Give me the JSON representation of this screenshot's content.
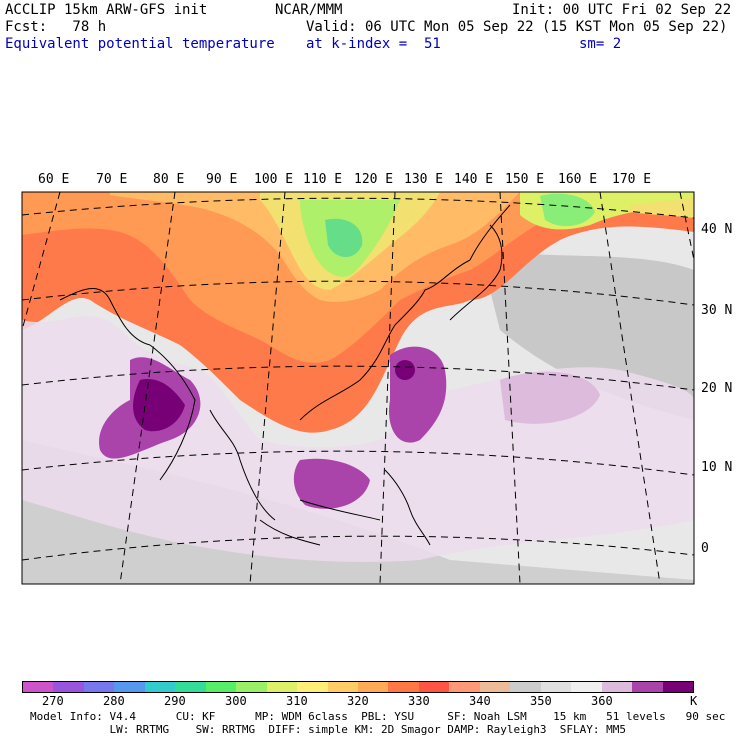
{
  "header": {
    "line1_left": "ACCLIP 15km ARW-GFS init",
    "line1_mid": "NCAR/MMM",
    "line1_right": "Init: 00 UTC Fri 02 Sep 22",
    "line2_left": "Fcst:   78 h",
    "line2_right": "Valid: 06 UTC Mon 05 Sep 22 (15 KST Mon 05 Sep 22)",
    "line3_left": "Equivalent potential temperature",
    "line3_mid": "at k-index =  51",
    "line3_right": "sm= 2"
  },
  "map": {
    "lon_labels": [
      "60 E",
      "70 E",
      "80 E",
      "90 E",
      "100 E",
      "110 E",
      "120 E",
      "130 E",
      "140 E",
      "150 E",
      "160 E",
      "170 E"
    ],
    "lat_labels": [
      "40 N",
      "30 N",
      "20 N",
      "10 N",
      "0"
    ]
  },
  "colorbar": {
    "colors": [
      "#cc55cc",
      "#9955dd",
      "#7777ee",
      "#5599ee",
      "#33cccc",
      "#33dd99",
      "#55ee66",
      "#99f066",
      "#ddf066",
      "#ffee77",
      "#ffcc66",
      "#ffaa55",
      "#ff7744",
      "#ff5544",
      "#ff9977",
      "#eebb99",
      "#cccccc",
      "#e0e0e0",
      "#f0f0f0",
      "#ddbbdd",
      "#aa44aa",
      "#770077"
    ],
    "tick_labels": [
      "270",
      "280",
      "290",
      "300",
      "310",
      "320",
      "330",
      "340",
      "350",
      "360"
    ],
    "unit": "K"
  },
  "footer": {
    "line1": "Model Info: V4.4      CU: KF      MP: WDM 6class  PBL: YSU     SF: Noah LSM    15 km   51 levels   90 sec",
    "line2": "            LW: RRTMG    SW: RRTMG  DIFF: simple KM: 2D Smagor DAMP: Rayleigh3  SFLAY: MM5"
  }
}
